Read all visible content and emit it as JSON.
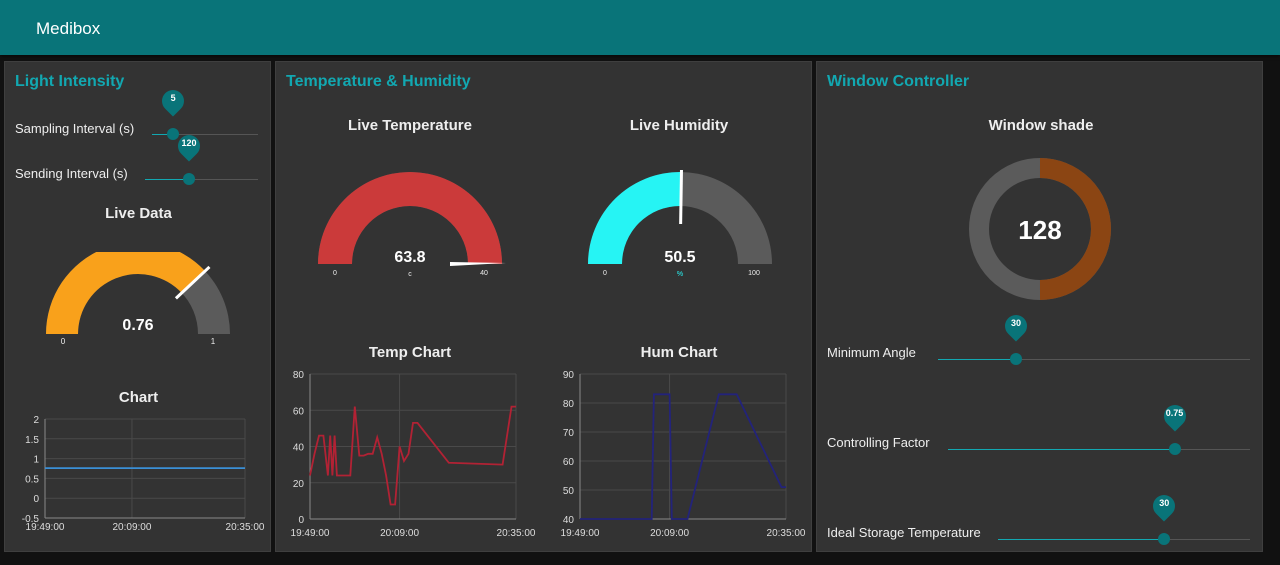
{
  "header": {
    "title": "Medibox"
  },
  "light": {
    "title": "Light Intensity",
    "sampling": {
      "label": "Sampling Interval (s)",
      "value": "5",
      "fraction": 0.2
    },
    "sending": {
      "label": "Sending Interval (s)",
      "value": "120",
      "fraction": 0.39
    },
    "gauge": {
      "title": "Live Data",
      "value": "0.76",
      "min": "0",
      "max": "1",
      "fraction": 0.76,
      "color": "#F9A11B"
    },
    "chart": {
      "title": "Chart"
    }
  },
  "temphum": {
    "title": "Temperature & Humidity",
    "temp_gauge": {
      "title": "Live Temperature",
      "value": "63.8",
      "unit": "c",
      "min": "0",
      "max": "40",
      "fraction": 1.0,
      "color": "#CB3A3A"
    },
    "hum_gauge": {
      "title": "Live Humidity",
      "value": "50.5",
      "unit": "%",
      "min": "0",
      "max": "100",
      "fraction": 0.505,
      "color": "#26F4F4"
    },
    "temp_chart": {
      "title": "Temp Chart"
    },
    "hum_chart": {
      "title": "Hum Chart"
    }
  },
  "window": {
    "title": "Window Controller",
    "donut": {
      "title": "Window shade",
      "value": "128",
      "fraction": 0.5,
      "color": "#8B4513"
    },
    "min_angle": {
      "label": "Minimum Angle",
      "value": "30",
      "fraction": 0.25
    },
    "ctrl_factor": {
      "label": "Controlling Factor",
      "value": "0.75",
      "fraction": 0.75
    },
    "ideal_temp": {
      "label": "Ideal Storage Temperature",
      "value": "30",
      "fraction": 0.66
    }
  },
  "chart_data": [
    {
      "type": "line",
      "title": "Chart",
      "x": [
        "19:49:00",
        "20:35:00"
      ],
      "series": [
        {
          "values": [
            0.76,
            0.76
          ],
          "color": "#3A8FD6"
        }
      ],
      "xticks": [
        "19:49:00",
        "20:09:00",
        "20:35:00"
      ],
      "yticks": [
        "2",
        "1.5",
        "1",
        "0.5",
        "0",
        "-0.5"
      ],
      "ylim": [
        -0.5,
        2
      ],
      "grid": true
    },
    {
      "type": "line",
      "title": "Temp Chart",
      "x": [
        "19:49:00",
        "19:50:00",
        "19:51:00",
        "19:52:00",
        "19:53:00",
        "19:53:30",
        "19:54:00",
        "19:54:30",
        "19:55:00",
        "19:56:00",
        "19:57:00",
        "19:58:00",
        "19:59:00",
        "20:00:00",
        "20:01:00",
        "20:02:00",
        "20:03:00",
        "20:04:00",
        "20:05:00",
        "20:06:00",
        "20:07:00",
        "20:08:00",
        "20:09:00",
        "20:10:00",
        "20:11:00",
        "20:12:00",
        "20:13:00",
        "20:20:00",
        "20:32:00",
        "20:34:00",
        "20:35:00"
      ],
      "series": [
        {
          "values": [
            24,
            36,
            46,
            46,
            24,
            46,
            24,
            46,
            24,
            24,
            24,
            24,
            62,
            35,
            35,
            36,
            36,
            45,
            36,
            24,
            8,
            8,
            40,
            32,
            36,
            53,
            53,
            31,
            30,
            62,
            62
          ],
          "color": "#B22234"
        }
      ],
      "xticks": [
        "19:49:00",
        "20:09:00",
        "20:35:00"
      ],
      "yticks": [
        "80",
        "60",
        "40",
        "20",
        "0"
      ],
      "ylim": [
        0,
        80
      ],
      "grid": true
    },
    {
      "type": "line",
      "title": "Hum Chart",
      "x": [
        "19:49:00",
        "20:05:00",
        "20:05:30",
        "20:09:00",
        "20:09:30",
        "20:13:00",
        "20:20:00",
        "20:24:00",
        "20:34:00",
        "20:35:00"
      ],
      "series": [
        {
          "values": [
            40,
            40,
            83,
            83,
            40,
            40,
            83,
            83,
            51,
            51
          ],
          "color": "#23237A"
        }
      ],
      "xticks": [
        "19:49:00",
        "20:09:00",
        "20:35:00"
      ],
      "yticks": [
        "90",
        "80",
        "70",
        "60",
        "50",
        "40"
      ],
      "ylim": [
        40,
        90
      ],
      "grid": true
    }
  ]
}
